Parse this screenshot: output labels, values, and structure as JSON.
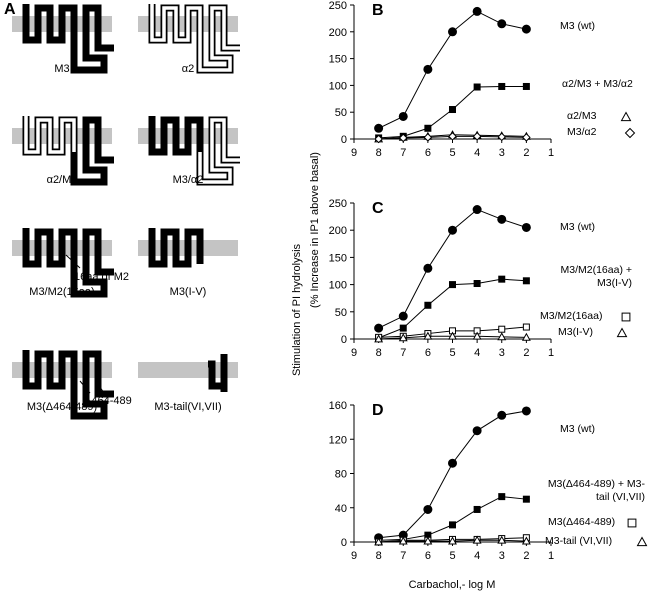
{
  "panel_a": {
    "label": "A",
    "constructs": [
      "M3",
      "α2",
      "α2/M3",
      "M3/α2",
      "M3/M2(16aa)",
      "M3(I-V)",
      "M3(Δ464-489)",
      "M3-tail(VI,VII)"
    ],
    "annotations": [
      "16aa of M2",
      "Δ464-489"
    ]
  },
  "shared": {
    "ylabel": "Stimulation of PI hydrolysis",
    "ylabel_note": "(% Increase in IP1 above basal)",
    "xlabel": "Carbachol,- log M"
  },
  "chart_data": [
    {
      "type": "line",
      "panel": "B",
      "x": [
        8,
        7,
        6,
        5,
        4,
        3,
        2
      ],
      "xlim": [
        9,
        1
      ],
      "xticks": [
        9,
        8,
        7,
        6,
        5,
        4,
        3,
        2,
        1
      ],
      "ylim": [
        0,
        250
      ],
      "yticks": [
        0,
        50,
        100,
        150,
        200,
        250
      ],
      "series": [
        {
          "name": "M3 (wt)",
          "color": "#000000",
          "marker": "circle",
          "filled": true,
          "values": [
            20,
            42,
            130,
            200,
            238,
            215,
            205
          ]
        },
        {
          "name": "α2/M3 + M3/α2",
          "color": "#000000",
          "marker": "square",
          "filled": true,
          "values": [
            2,
            5,
            20,
            55,
            97,
            98,
            98
          ]
        },
        {
          "name": "α2/M3",
          "color": "#000000",
          "marker": "triangle",
          "filled": false,
          "values": [
            0,
            3,
            5,
            8,
            7,
            6,
            5
          ]
        },
        {
          "name": "M3/α2",
          "color": "#000000",
          "marker": "diamond",
          "filled": false,
          "values": [
            0,
            2,
            3,
            5,
            5,
            4,
            3
          ]
        }
      ]
    },
    {
      "type": "line",
      "panel": "C",
      "x": [
        8,
        7,
        6,
        5,
        4,
        3,
        2
      ],
      "xlim": [
        9,
        1
      ],
      "xticks": [
        9,
        8,
        7,
        6,
        5,
        4,
        3,
        2,
        1
      ],
      "ylim": [
        0,
        250
      ],
      "yticks": [
        0,
        50,
        100,
        150,
        200,
        250
      ],
      "series": [
        {
          "name": "M3 (wt)",
          "color": "#000000",
          "marker": "circle",
          "filled": true,
          "values": [
            20,
            42,
            130,
            200,
            238,
            220,
            205
          ]
        },
        {
          "name": "M3/M2(16aa) + M3(I-V)",
          "color": "#000000",
          "marker": "square",
          "filled": true,
          "values": [
            2,
            20,
            62,
            100,
            102,
            110,
            107
          ]
        },
        {
          "name": "M3/M2(16aa)",
          "color": "#000000",
          "marker": "square",
          "filled": false,
          "values": [
            3,
            5,
            10,
            15,
            15,
            18,
            22
          ]
        },
        {
          "name": "M3(I-V)",
          "color": "#000000",
          "marker": "triangle",
          "filled": false,
          "values": [
            0,
            2,
            5,
            5,
            5,
            4,
            3
          ]
        }
      ]
    },
    {
      "type": "line",
      "panel": "D",
      "x": [
        8,
        7,
        6,
        5,
        4,
        3,
        2
      ],
      "xlim": [
        9,
        1
      ],
      "xticks": [
        9,
        8,
        7,
        6,
        5,
        4,
        3,
        2,
        1
      ],
      "ylim": [
        0,
        160
      ],
      "yticks": [
        0,
        40,
        80,
        120,
        160
      ],
      "series": [
        {
          "name": "M3 (wt)",
          "color": "#000000",
          "marker": "circle",
          "filled": true,
          "values": [
            5,
            8,
            38,
            92,
            130,
            148,
            153
          ]
        },
        {
          "name": "M3(Δ464-489) + M3-tail (VI,VII)",
          "color": "#000000",
          "marker": "square",
          "filled": true,
          "values": [
            2,
            3,
            8,
            20,
            38,
            53,
            50
          ]
        },
        {
          "name": "M3(Δ464-489)",
          "color": "#000000",
          "marker": "square",
          "filled": false,
          "values": [
            0,
            2,
            2,
            3,
            3,
            4,
            5
          ]
        },
        {
          "name": "M3-tail (VI,VII)",
          "color": "#000000",
          "marker": "triangle",
          "filled": false,
          "values": [
            0,
            1,
            1,
            1,
            2,
            2,
            1
          ]
        }
      ]
    }
  ]
}
